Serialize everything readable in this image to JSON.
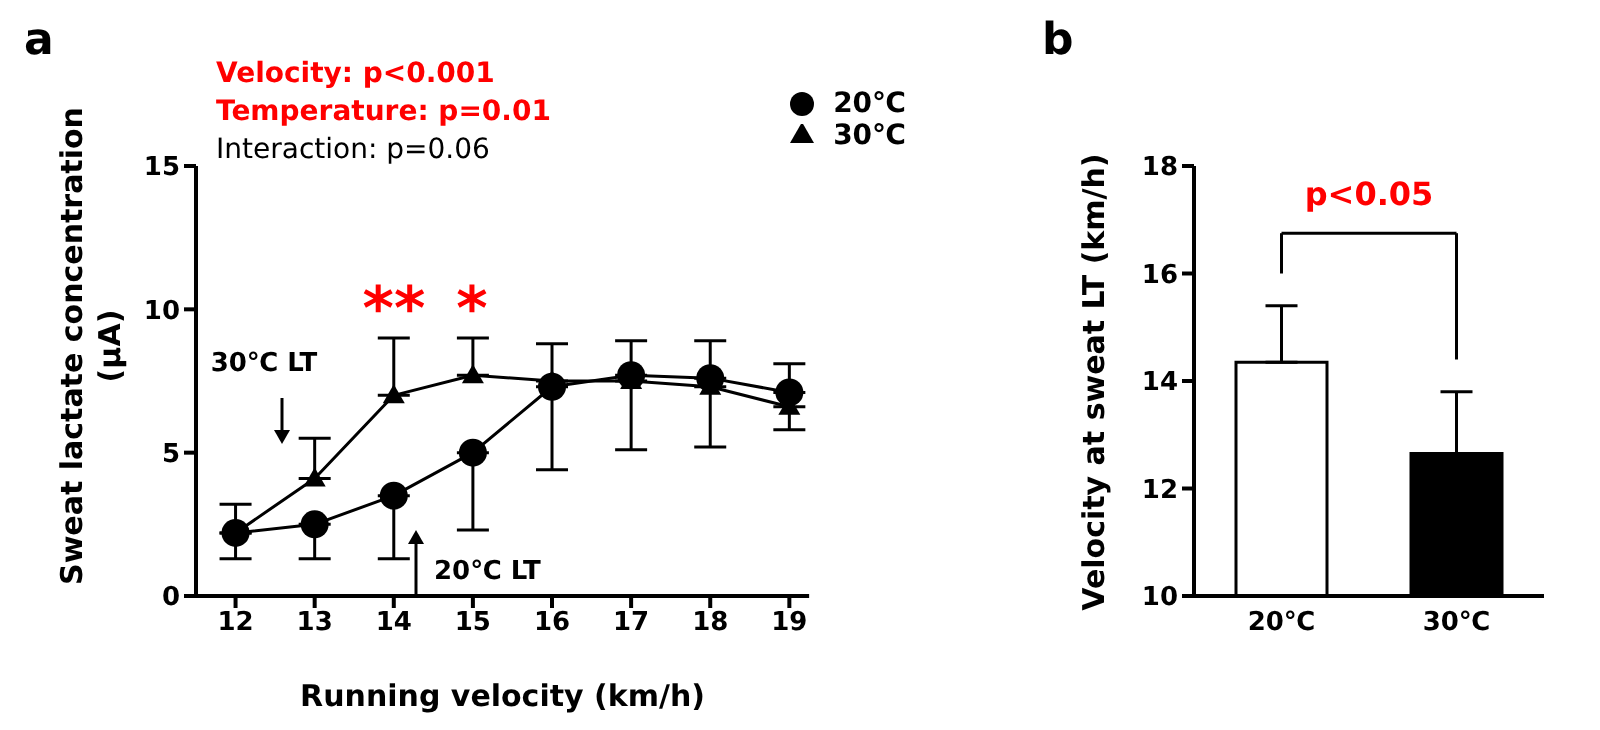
{
  "chart_data": [
    {
      "type": "line",
      "title": "a",
      "xlabel": "Running velocity (km/h)",
      "ylabel": "Sweat lactate concentration (μA)",
      "x": [
        12,
        13,
        14,
        15,
        16,
        17,
        18,
        19
      ],
      "xlim": [
        11.5,
        19.25
      ],
      "xticks": [
        12,
        13,
        14,
        15,
        16,
        17,
        18,
        19
      ],
      "ylim": [
        0,
        15
      ],
      "yticks": [
        0,
        5,
        10,
        15
      ],
      "legend": "top right",
      "series": [
        {
          "name": "20℃",
          "color": "#000000",
          "marker": "circle",
          "values": [
            2.2,
            2.5,
            3.5,
            5.0,
            7.3,
            7.7,
            7.6,
            7.1
          ],
          "errors": [
            [
              1.3,
              3.2
            ],
            [
              1.3,
              2.5
            ],
            [
              1.3,
              3.5
            ],
            [
              2.3,
              5.0
            ],
            [
              7.3,
              8.8
            ],
            [
              7.7,
              8.9
            ],
            [
              7.6,
              8.9
            ],
            [
              7.1,
              8.1
            ]
          ]
        },
        {
          "name": "30℃",
          "color": "#000000",
          "marker": "triangle",
          "values": [
            2.2,
            4.1,
            7.0,
            7.7,
            7.5,
            7.5,
            7.3,
            6.6
          ],
          "errors": [
            null,
            [
              4.1,
              5.5
            ],
            [
              7.0,
              9.0
            ],
            [
              7.7,
              9.0
            ],
            [
              4.4,
              7.5
            ],
            [
              5.1,
              7.5
            ],
            [
              5.2,
              7.3
            ],
            [
              5.8,
              6.6
            ]
          ]
        }
      ],
      "annotations": [
        "Velocity: p<0.001",
        "Temperature: p=0.01",
        "Interaction: p=0.06",
        "**",
        "*",
        "30℃ LT",
        "20℃ LT"
      ]
    },
    {
      "type": "bar",
      "title": "b",
      "ylabel": "Velocity at sweat LT (km/h)",
      "categories": [
        "20℃",
        "30℃"
      ],
      "values": [
        14.35,
        12.65
      ],
      "colors": [
        "#ffffff",
        "#000000"
      ],
      "errors": [
        [
          14.35,
          15.4
        ],
        [
          12.65,
          13.8
        ]
      ],
      "ylim": [
        10,
        18
      ],
      "yticks": [
        10,
        12,
        14,
        16,
        18
      ],
      "annotations": [
        "p<0.05"
      ]
    }
  ]
}
